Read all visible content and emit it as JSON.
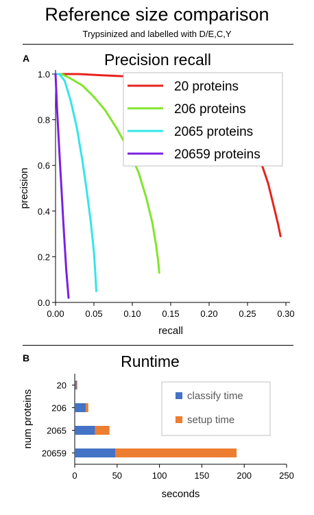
{
  "title": "Reference size comparison",
  "subtitle": "Trypsinized and labelled with D/E,C,Y",
  "colors": {
    "red": "#e8211d",
    "green": "#80e52b",
    "cyan": "#33e5e8",
    "purple": "#7a20e0",
    "blue": "#4472c4",
    "orange": "#ed7d31"
  },
  "chart_data": [
    {
      "panel": "A",
      "type": "line",
      "title": "Precision recall",
      "xlabel": "recall",
      "ylabel": "precision",
      "xlim": [
        0,
        0.3
      ],
      "ylim": [
        0,
        1.0
      ],
      "xticks": [
        "0.00",
        "0.05",
        "0.10",
        "0.15",
        "0.20",
        "0.25",
        "0.30"
      ],
      "xtick_values": [
        0,
        0.05,
        0.1,
        0.15,
        0.2,
        0.25,
        0.3
      ],
      "yticks": [
        "0.0",
        "0.2",
        "0.4",
        "0.6",
        "0.8",
        "1.0"
      ],
      "ytick_values": [
        0,
        0.2,
        0.4,
        0.6,
        0.8,
        1.0
      ],
      "legend_position": "top-right",
      "series": [
        {
          "name": "20 proteins",
          "color": "#e8211d",
          "x": [
            0.0,
            0.01,
            0.03,
            0.06,
            0.09,
            0.12,
            0.15,
            0.18,
            0.21,
            0.23,
            0.25,
            0.265,
            0.277,
            0.285,
            0.29,
            0.293
          ],
          "y": [
            1.0,
            1.0,
            1.0,
            0.995,
            0.99,
            0.98,
            0.97,
            0.95,
            0.91,
            0.86,
            0.77,
            0.64,
            0.52,
            0.41,
            0.34,
            0.29
          ]
        },
        {
          "name": "206 proteins",
          "color": "#80e52b",
          "x": [
            0.0,
            0.008,
            0.02,
            0.035,
            0.05,
            0.065,
            0.08,
            0.095,
            0.108,
            0.118,
            0.126,
            0.131,
            0.134,
            0.135
          ],
          "y": [
            1.0,
            1.0,
            0.98,
            0.95,
            0.9,
            0.84,
            0.76,
            0.67,
            0.57,
            0.46,
            0.35,
            0.25,
            0.17,
            0.13
          ]
        },
        {
          "name": "2065 proteins",
          "color": "#33e5e8",
          "x": [
            0.0,
            0.005,
            0.012,
            0.02,
            0.028,
            0.035,
            0.041,
            0.046,
            0.05,
            0.052,
            0.053
          ],
          "y": [
            1.0,
            1.0,
            0.97,
            0.88,
            0.76,
            0.62,
            0.48,
            0.35,
            0.22,
            0.12,
            0.05
          ]
        },
        {
          "name": "20659 proteins",
          "color": "#7a20e0",
          "x": [
            0.0,
            0.002,
            0.004,
            0.006,
            0.008,
            0.01,
            0.012,
            0.014,
            0.016,
            0.017
          ],
          "y": [
            1.0,
            0.85,
            0.72,
            0.6,
            0.48,
            0.36,
            0.25,
            0.14,
            0.06,
            0.02
          ]
        }
      ]
    },
    {
      "panel": "B",
      "type": "bar",
      "orientation": "horizontal",
      "stacked": true,
      "title": "Runtime",
      "xlabel": "seconds",
      "ylabel": "num proteins",
      "xlim": [
        0,
        250
      ],
      "xticks": [
        "0",
        "50",
        "100",
        "150",
        "200",
        "250"
      ],
      "xtick_values": [
        0,
        50,
        100,
        150,
        200,
        250
      ],
      "categories": [
        "20",
        "206",
        "2065",
        "20659"
      ],
      "legend_position": "right",
      "series": [
        {
          "name": "classify time",
          "color": "#4472c4",
          "values": [
            2,
            13,
            24,
            48
          ]
        },
        {
          "name": "setup time",
          "color": "#ed7d31",
          "values": [
            1,
            3,
            17,
            143
          ]
        }
      ]
    }
  ]
}
